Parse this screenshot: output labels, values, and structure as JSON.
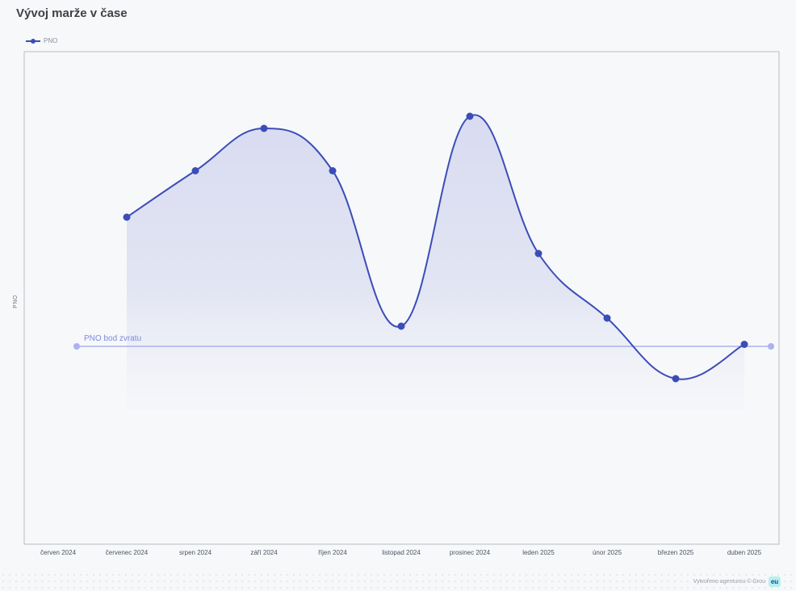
{
  "page": {
    "title": "Vývoj marže v čase",
    "footer_text": "Vytvořeno agenturou © Grou",
    "footer_logo": "eu"
  },
  "chart_data": {
    "type": "line",
    "title": "Vývoj marže v čase",
    "xlabel": "",
    "ylabel": "PNO",
    "categories": [
      "červen 2024",
      "červenec 2024",
      "srpen 2024",
      "září 2024",
      "říjen 2024",
      "listopad 2024",
      "prosinec 2024",
      "leden 2025",
      "únor 2025",
      "březen 2025",
      "duben 2025"
    ],
    "series": [
      {
        "name": "PNO",
        "color": "#3b4db8",
        "values": [
          null,
          53,
          64.5,
          75,
          64.5,
          26,
          78,
          44,
          28,
          13,
          21.5
        ]
      }
    ],
    "reference_line": {
      "label": "PNO bod zvratu",
      "value": 21,
      "color": "#aab2f0"
    },
    "ylim": [
      -28,
      94
    ],
    "grid": false,
    "legend_position": "top-left",
    "colors": {
      "line": "#3b4db8",
      "fill": "#dcdff2",
      "reference": "#aab2f0"
    }
  }
}
